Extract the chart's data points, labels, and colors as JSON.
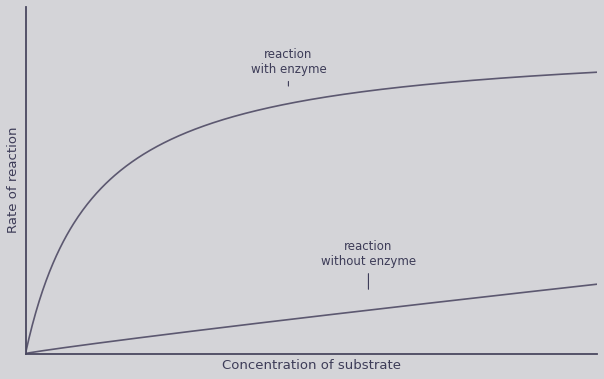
{
  "xlabel": "Concentration of substrate",
  "ylabel": "Rate of reaction",
  "curve_color": "#5c5870",
  "background_color": "#d4d4d8",
  "axes_color": "#4a4860",
  "text_color": "#3d3c58",
  "label_enzyme": "reaction\nwith enzyme",
  "label_no_enzyme": "reaction\nwithout enzyme",
  "enzyme_vmax": 1.0,
  "enzyme_km": 0.12,
  "no_enzyme_power": 0.92,
  "no_enzyme_scale": 0.22,
  "x_max": 1.0,
  "y_max": 1.1,
  "font_size_labels": 8.5,
  "font_size_axis": 9.5,
  "line_width": 1.2
}
